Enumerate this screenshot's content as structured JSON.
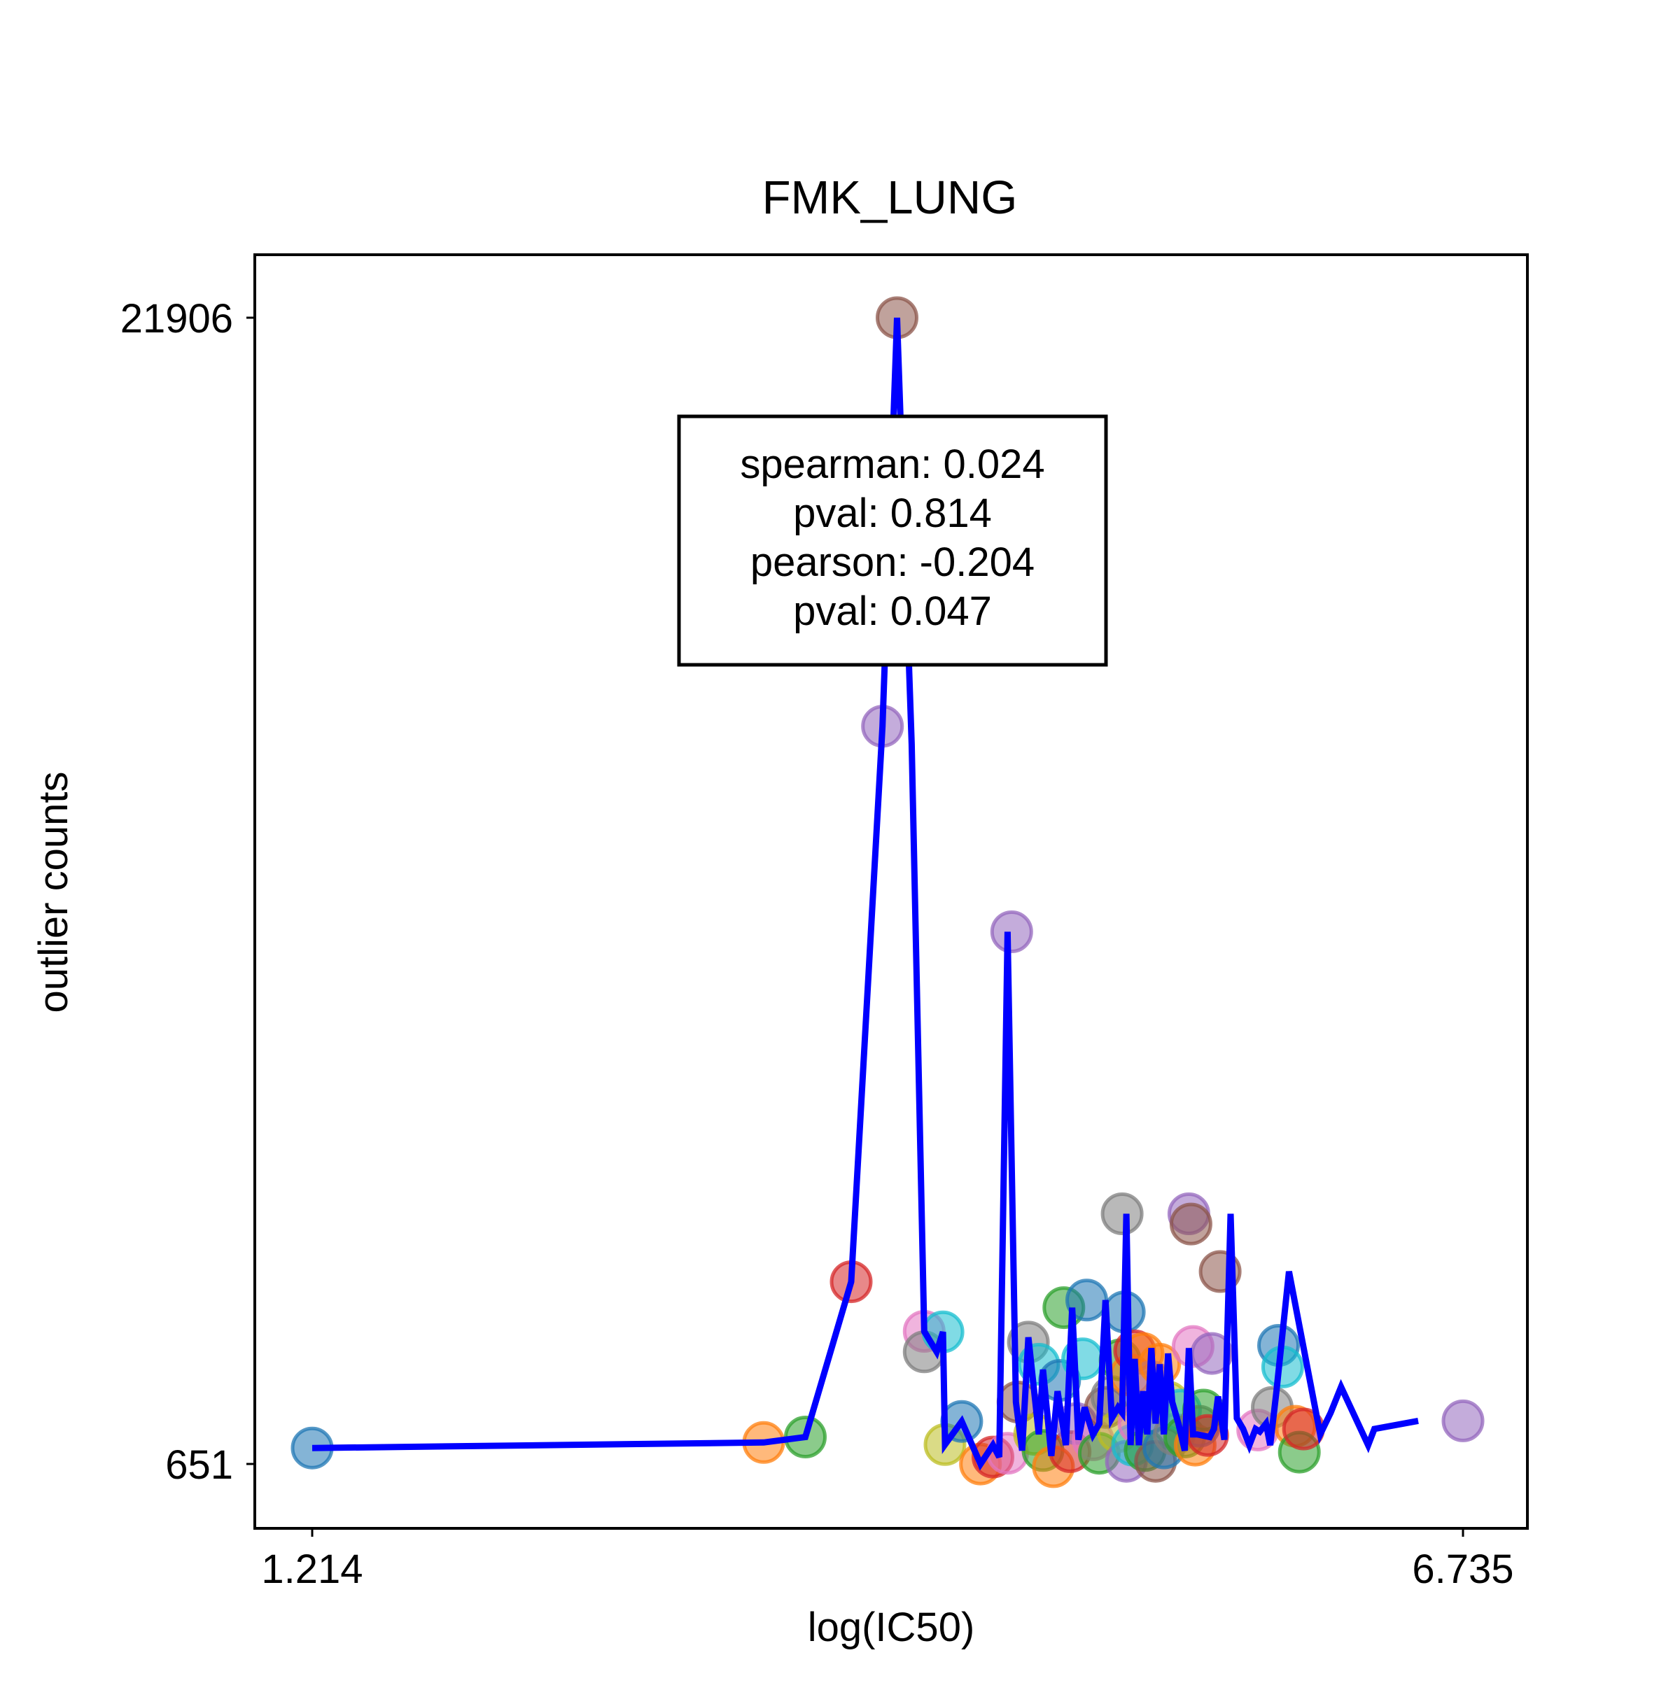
{
  "chart_data": {
    "type": "scatter",
    "title": "FMK_LUNG",
    "xlabel": "log(IC50)",
    "ylabel": "outlier counts",
    "x_ticks": [
      "1.214",
      "6.735"
    ],
    "y_ticks": [
      "21906",
      "651"
    ],
    "xlim": [
      1.214,
      6.735
    ],
    "ylim": [
      651,
      21906
    ],
    "grid": false,
    "stats_box": {
      "lines": [
        "spearman: 0.024",
        "pval: 0.814",
        "pearson: -0.204",
        "pval: 0.047"
      ]
    },
    "line_color": "#0000ff",
    "point_colors": [
      "#1f77b4",
      "#ff7f0e",
      "#2ca02c",
      "#d62728",
      "#9467bd",
      "#8c564b",
      "#e377c2",
      "#7f7f7f",
      "#bcbd22",
      "#17becf"
    ],
    "points": [
      {
        "x": 1.214,
        "y": 947,
        "c": "#1f77b4"
      },
      {
        "x": 3.38,
        "y": 1050,
        "c": "#ff7f0e"
      },
      {
        "x": 3.58,
        "y": 1150,
        "c": "#2ca02c"
      },
      {
        "x": 3.8,
        "y": 4030,
        "c": "#d62728"
      },
      {
        "x": 3.95,
        "y": 14330,
        "c": "#9467bd"
      },
      {
        "x": 4.02,
        "y": 21906,
        "c": "#8c564b"
      },
      {
        "x": 4.15,
        "y": 3110,
        "c": "#e377c2"
      },
      {
        "x": 4.15,
        "y": 2730,
        "c": "#7f7f7f"
      },
      {
        "x": 4.24,
        "y": 3100,
        "c": "#17becf"
      },
      {
        "x": 4.25,
        "y": 1010,
        "c": "#bcbd22"
      },
      {
        "x": 4.33,
        "y": 1440,
        "c": "#1f77b4"
      },
      {
        "x": 4.42,
        "y": 650,
        "c": "#ff7f0e"
      },
      {
        "x": 4.48,
        "y": 780,
        "c": "#d62728"
      },
      {
        "x": 4.55,
        "y": 850,
        "c": "#e377c2"
      },
      {
        "x": 4.57,
        "y": 10520,
        "c": "#9467bd"
      },
      {
        "x": 4.6,
        "y": 1800,
        "c": "#8c564b"
      },
      {
        "x": 4.65,
        "y": 2910,
        "c": "#7f7f7f"
      },
      {
        "x": 4.68,
        "y": 1200,
        "c": "#bcbd22"
      },
      {
        "x": 4.7,
        "y": 2500,
        "c": "#17becf"
      },
      {
        "x": 4.72,
        "y": 900,
        "c": "#2ca02c"
      },
      {
        "x": 4.77,
        "y": 600,
        "c": "#ff7f0e"
      },
      {
        "x": 4.8,
        "y": 2200,
        "c": "#1f77b4"
      },
      {
        "x": 4.82,
        "y": 3550,
        "c": "#2ca02c"
      },
      {
        "x": 4.85,
        "y": 880,
        "c": "#d62728"
      },
      {
        "x": 4.88,
        "y": 1400,
        "c": "#9467bd"
      },
      {
        "x": 4.91,
        "y": 2600,
        "c": "#17becf"
      },
      {
        "x": 4.93,
        "y": 3690,
        "c": "#1f77b4"
      },
      {
        "x": 4.96,
        "y": 1100,
        "c": "#e377c2"
      },
      {
        "x": 4.99,
        "y": 850,
        "c": "#2ca02c"
      },
      {
        "x": 5.02,
        "y": 1700,
        "c": "#8c564b"
      },
      {
        "x": 5.05,
        "y": 1900,
        "c": "#7f7f7f"
      },
      {
        "x": 5.08,
        "y": 1250,
        "c": "#bcbd22"
      },
      {
        "x": 5.09,
        "y": 2580,
        "c": "#2ca02c"
      },
      {
        "x": 5.1,
        "y": 5290,
        "c": "#7f7f7f"
      },
      {
        "x": 5.11,
        "y": 3470,
        "c": "#1f77b4"
      },
      {
        "x": 5.12,
        "y": 700,
        "c": "#9467bd"
      },
      {
        "x": 5.14,
        "y": 2300,
        "c": "#ff7f0e"
      },
      {
        "x": 5.15,
        "y": 1000,
        "c": "#17becf"
      },
      {
        "x": 5.16,
        "y": 2750,
        "c": "#d62728"
      },
      {
        "x": 5.18,
        "y": 1400,
        "c": "#e377c2"
      },
      {
        "x": 5.2,
        "y": 2700,
        "c": "#ff7f0e"
      },
      {
        "x": 5.21,
        "y": 900,
        "c": "#2ca02c"
      },
      {
        "x": 5.23,
        "y": 1600,
        "c": "#1f77b4"
      },
      {
        "x": 5.24,
        "y": 2180,
        "c": "#9467bd"
      },
      {
        "x": 5.26,
        "y": 700,
        "c": "#8c564b"
      },
      {
        "x": 5.28,
        "y": 2500,
        "c": "#ff7f0e"
      },
      {
        "x": 5.3,
        "y": 950,
        "c": "#1f77b4"
      },
      {
        "x": 5.32,
        "y": 1800,
        "c": "#bcbd22"
      },
      {
        "x": 5.35,
        "y": 1200,
        "c": "#7f7f7f"
      },
      {
        "x": 5.38,
        "y": 1650,
        "c": "#17becf"
      },
      {
        "x": 5.4,
        "y": 1150,
        "c": "#2ca02c"
      },
      {
        "x": 5.42,
        "y": 5290,
        "c": "#9467bd"
      },
      {
        "x": 5.43,
        "y": 5100,
        "c": "#8c564b"
      },
      {
        "x": 5.44,
        "y": 2830,
        "c": "#e377c2"
      },
      {
        "x": 5.45,
        "y": 1000,
        "c": "#ff7f0e"
      },
      {
        "x": 5.47,
        "y": 1350,
        "c": "#7f7f7f"
      },
      {
        "x": 5.49,
        "y": 1650,
        "c": "#2ca02c"
      },
      {
        "x": 5.51,
        "y": 1180,
        "c": "#d62728"
      },
      {
        "x": 5.53,
        "y": 2700,
        "c": "#9467bd"
      },
      {
        "x": 5.57,
        "y": 4220,
        "c": "#8c564b"
      },
      {
        "x": 5.75,
        "y": 1280,
        "c": "#e377c2"
      },
      {
        "x": 5.82,
        "y": 1700,
        "c": "#7f7f7f"
      },
      {
        "x": 5.85,
        "y": 2850,
        "c": "#1f77b4"
      },
      {
        "x": 5.87,
        "y": 2450,
        "c": "#17becf"
      },
      {
        "x": 5.93,
        "y": 1350,
        "c": "#ff7f0e"
      },
      {
        "x": 5.95,
        "y": 870,
        "c": "#2ca02c"
      },
      {
        "x": 5.97,
        "y": 1300,
        "c": "#d62728"
      },
      {
        "x": 6.735,
        "y": 1450,
        "c": "#9467bd"
      }
    ],
    "line": [
      [
        1.214,
        947
      ],
      [
        3.38,
        1050
      ],
      [
        3.58,
        1150
      ],
      [
        3.8,
        4030
      ],
      [
        3.95,
        14330
      ],
      [
        4.02,
        21906
      ],
      [
        4.09,
        14000
      ],
      [
        4.15,
        3110
      ],
      [
        4.21,
        2730
      ],
      [
        4.24,
        3100
      ],
      [
        4.25,
        1010
      ],
      [
        4.33,
        1440
      ],
      [
        4.42,
        650
      ],
      [
        4.48,
        1000
      ],
      [
        4.51,
        780
      ],
      [
        4.55,
        10520
      ],
      [
        4.59,
        1800
      ],
      [
        4.62,
        900
      ],
      [
        4.65,
        3000
      ],
      [
        4.7,
        1200
      ],
      [
        4.72,
        2400
      ],
      [
        4.76,
        800
      ],
      [
        4.79,
        2000
      ],
      [
        4.83,
        1000
      ],
      [
        4.86,
        3550
      ],
      [
        4.89,
        1100
      ],
      [
        4.92,
        1700
      ],
      [
        4.96,
        1200
      ],
      [
        4.99,
        1400
      ],
      [
        5.02,
        3690
      ],
      [
        5.05,
        1500
      ],
      [
        5.08,
        1700
      ],
      [
        5.1,
        1600
      ],
      [
        5.12,
        5290
      ],
      [
        5.14,
        1000
      ],
      [
        5.16,
        2600
      ],
      [
        5.18,
        1000
      ],
      [
        5.2,
        2000
      ],
      [
        5.22,
        1200
      ],
      [
        5.24,
        2800
      ],
      [
        5.26,
        1400
      ],
      [
        5.28,
        2500
      ],
      [
        5.3,
        1200
      ],
      [
        5.32,
        2700
      ],
      [
        5.34,
        1800
      ],
      [
        5.37,
        1400
      ],
      [
        5.4,
        900
      ],
      [
        5.42,
        2800
      ],
      [
        5.44,
        1200
      ],
      [
        5.46,
        1200
      ],
      [
        5.52,
        1150
      ],
      [
        5.54,
        1300
      ],
      [
        5.56,
        1900
      ],
      [
        5.59,
        1100
      ],
      [
        5.62,
        5290
      ],
      [
        5.65,
        1500
      ],
      [
        5.68,
        1300
      ],
      [
        5.71,
        1000
      ],
      [
        5.74,
        1300
      ],
      [
        5.76,
        1250
      ],
      [
        5.79,
        1400
      ],
      [
        5.81,
        1000
      ],
      [
        5.84,
        2000
      ],
      [
        5.9,
        4220
      ],
      [
        6.05,
        1200
      ],
      [
        6.1,
        1600
      ],
      [
        6.15,
        2080
      ],
      [
        6.28,
        1000
      ],
      [
        6.31,
        1300
      ],
      [
        6.52,
        1450
      ]
    ]
  }
}
